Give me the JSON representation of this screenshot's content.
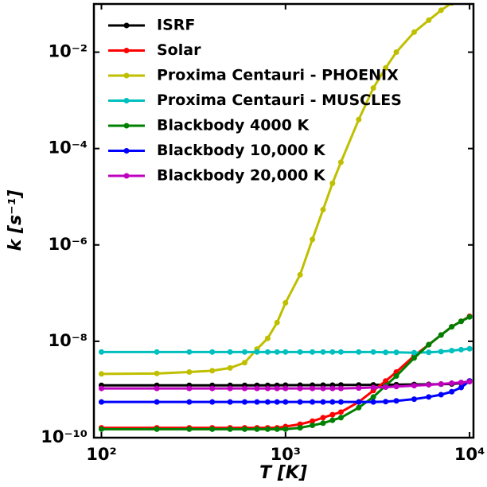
{
  "chart_data": {
    "type": "line",
    "xlabel": "T [K]",
    "ylabel": "k [s⁻¹]",
    "xscale": "log",
    "yscale": "log",
    "legend": "upper left",
    "x": [
      100,
      200,
      300,
      400,
      500,
      600,
      700,
      800,
      900,
      1000,
      1200,
      1400,
      1600,
      1800,
      2000,
      2500,
      3000,
      3500,
      4000,
      5000,
      6000,
      7000,
      8000,
      9000,
      10000
    ],
    "xlim": [
      91,
      10500
    ],
    "ylim": [
      1e-10,
      0.1
    ],
    "xticks": [
      {
        "value": 100,
        "label": "10²"
      },
      {
        "value": 1000,
        "label": "10³"
      },
      {
        "value": 10000,
        "label": "10⁴"
      }
    ],
    "yticks": [
      {
        "value": 1e-10,
        "label": "10⁻¹⁰"
      },
      {
        "value": 1e-08,
        "label": "10⁻⁸"
      },
      {
        "value": 1e-06,
        "label": "10⁻⁶"
      },
      {
        "value": 0.0001,
        "label": "10⁻⁴"
      },
      {
        "value": 0.01,
        "label": "10⁻²"
      }
    ],
    "series": [
      {
        "name": "ISRF",
        "color": "#000000",
        "values": [
          1.22e-09,
          1.22e-09,
          1.22e-09,
          1.22e-09,
          1.22e-09,
          1.22e-09,
          1.22e-09,
          1.22e-09,
          1.22e-09,
          1.23e-09,
          1.23e-09,
          1.23e-09,
          1.23e-09,
          1.23e-09,
          1.24e-09,
          1.24e-09,
          1.25e-09,
          1.25e-09,
          1.26e-09,
          1.27e-09,
          1.28e-09,
          1.29e-09,
          1.3e-09,
          1.35e-09,
          1.5e-09
        ]
      },
      {
        "name": "Solar",
        "color": "#ff0000",
        "values": [
          1.6e-10,
          1.6e-10,
          1.6e-10,
          1.6e-10,
          1.6e-10,
          1.6e-10,
          1.6e-10,
          1.6e-10,
          1.6e-10,
          1.7e-10,
          1.9e-10,
          2.2e-10,
          2.6e-10,
          3e-10,
          3.4e-10,
          5.5e-10,
          9.5e-10,
          1.5e-09,
          2.3e-09,
          5e-09,
          8.5e-09,
          1.35e-08,
          2e-08,
          2.6e-08,
          3.3e-08
        ]
      },
      {
        "name": "Proxima Centauri - PHOENIX",
        "color": "#bfbf00",
        "values": [
          2.1e-09,
          2.15e-09,
          2.3e-09,
          2.45e-09,
          2.8e-09,
          3.6e-09,
          6.9e-09,
          1.15e-08,
          2.45e-08,
          6.3e-08,
          2.4e-07,
          1.3e-06,
          5.4e-06,
          1.9e-05,
          5.2e-05,
          0.0004,
          0.0018,
          0.0047,
          0.01,
          0.026,
          0.046,
          0.074,
          0.105,
          0.14,
          0.19
        ]
      },
      {
        "name": "Proxima Centauri - MUSCLES",
        "color": "#00bfbf",
        "values": [
          6e-09,
          6e-09,
          6e-09,
          6e-09,
          6e-09,
          6e-09,
          6e-09,
          6e-09,
          6e-09,
          6e-09,
          6e-09,
          6e-09,
          6e-09,
          6e-09,
          6e-09,
          6e-09,
          6e-09,
          5.9e-09,
          5.9e-09,
          5.8e-09,
          5.9e-09,
          6.1e-09,
          6.4e-09,
          6.7e-09,
          7e-09
        ]
      },
      {
        "name": "Blackbody 4000 K",
        "color": "#008000",
        "values": [
          1.5e-10,
          1.5e-10,
          1.5e-10,
          1.5e-10,
          1.5e-10,
          1.5e-10,
          1.5e-10,
          1.5e-10,
          1.5e-10,
          1.5e-10,
          1.6e-10,
          1.8e-10,
          2e-10,
          2.3e-10,
          2.6e-10,
          4.2e-10,
          7e-10,
          1.2e-09,
          1.9e-09,
          4.5e-09,
          8.5e-09,
          1.35e-08,
          2e-08,
          2.6e-08,
          3.2e-08
        ]
      },
      {
        "name": "Blackbody 10,000 K",
        "color": "#0000ff",
        "values": [
          5.5e-10,
          5.5e-10,
          5.5e-10,
          5.5e-10,
          5.5e-10,
          5.5e-10,
          5.5e-10,
          5.5e-10,
          5.5e-10,
          5.5e-10,
          5.5e-10,
          5.5e-10,
          5.5e-10,
          5.5e-10,
          5.5e-10,
          5.5e-10,
          5.5e-10,
          5.6e-10,
          5.8e-10,
          6.3e-10,
          7e-10,
          7.8e-10,
          9e-10,
          1.1e-09,
          1.5e-09
        ]
      },
      {
        "name": "Blackbody 20,000 K",
        "color": "#bf00bf",
        "values": [
          1.05e-09,
          1.05e-09,
          1.05e-09,
          1.05e-09,
          1.05e-09,
          1.05e-09,
          1.05e-09,
          1.05e-09,
          1.05e-09,
          1.05e-09,
          1.05e-09,
          1.05e-09,
          1.05e-09,
          1.05e-09,
          1.05e-09,
          1.07e-09,
          1.1e-09,
          1.12e-09,
          1.15e-09,
          1.2e-09,
          1.25e-09,
          1.3e-09,
          1.35e-09,
          1.4e-09,
          1.45e-09
        ]
      }
    ]
  }
}
